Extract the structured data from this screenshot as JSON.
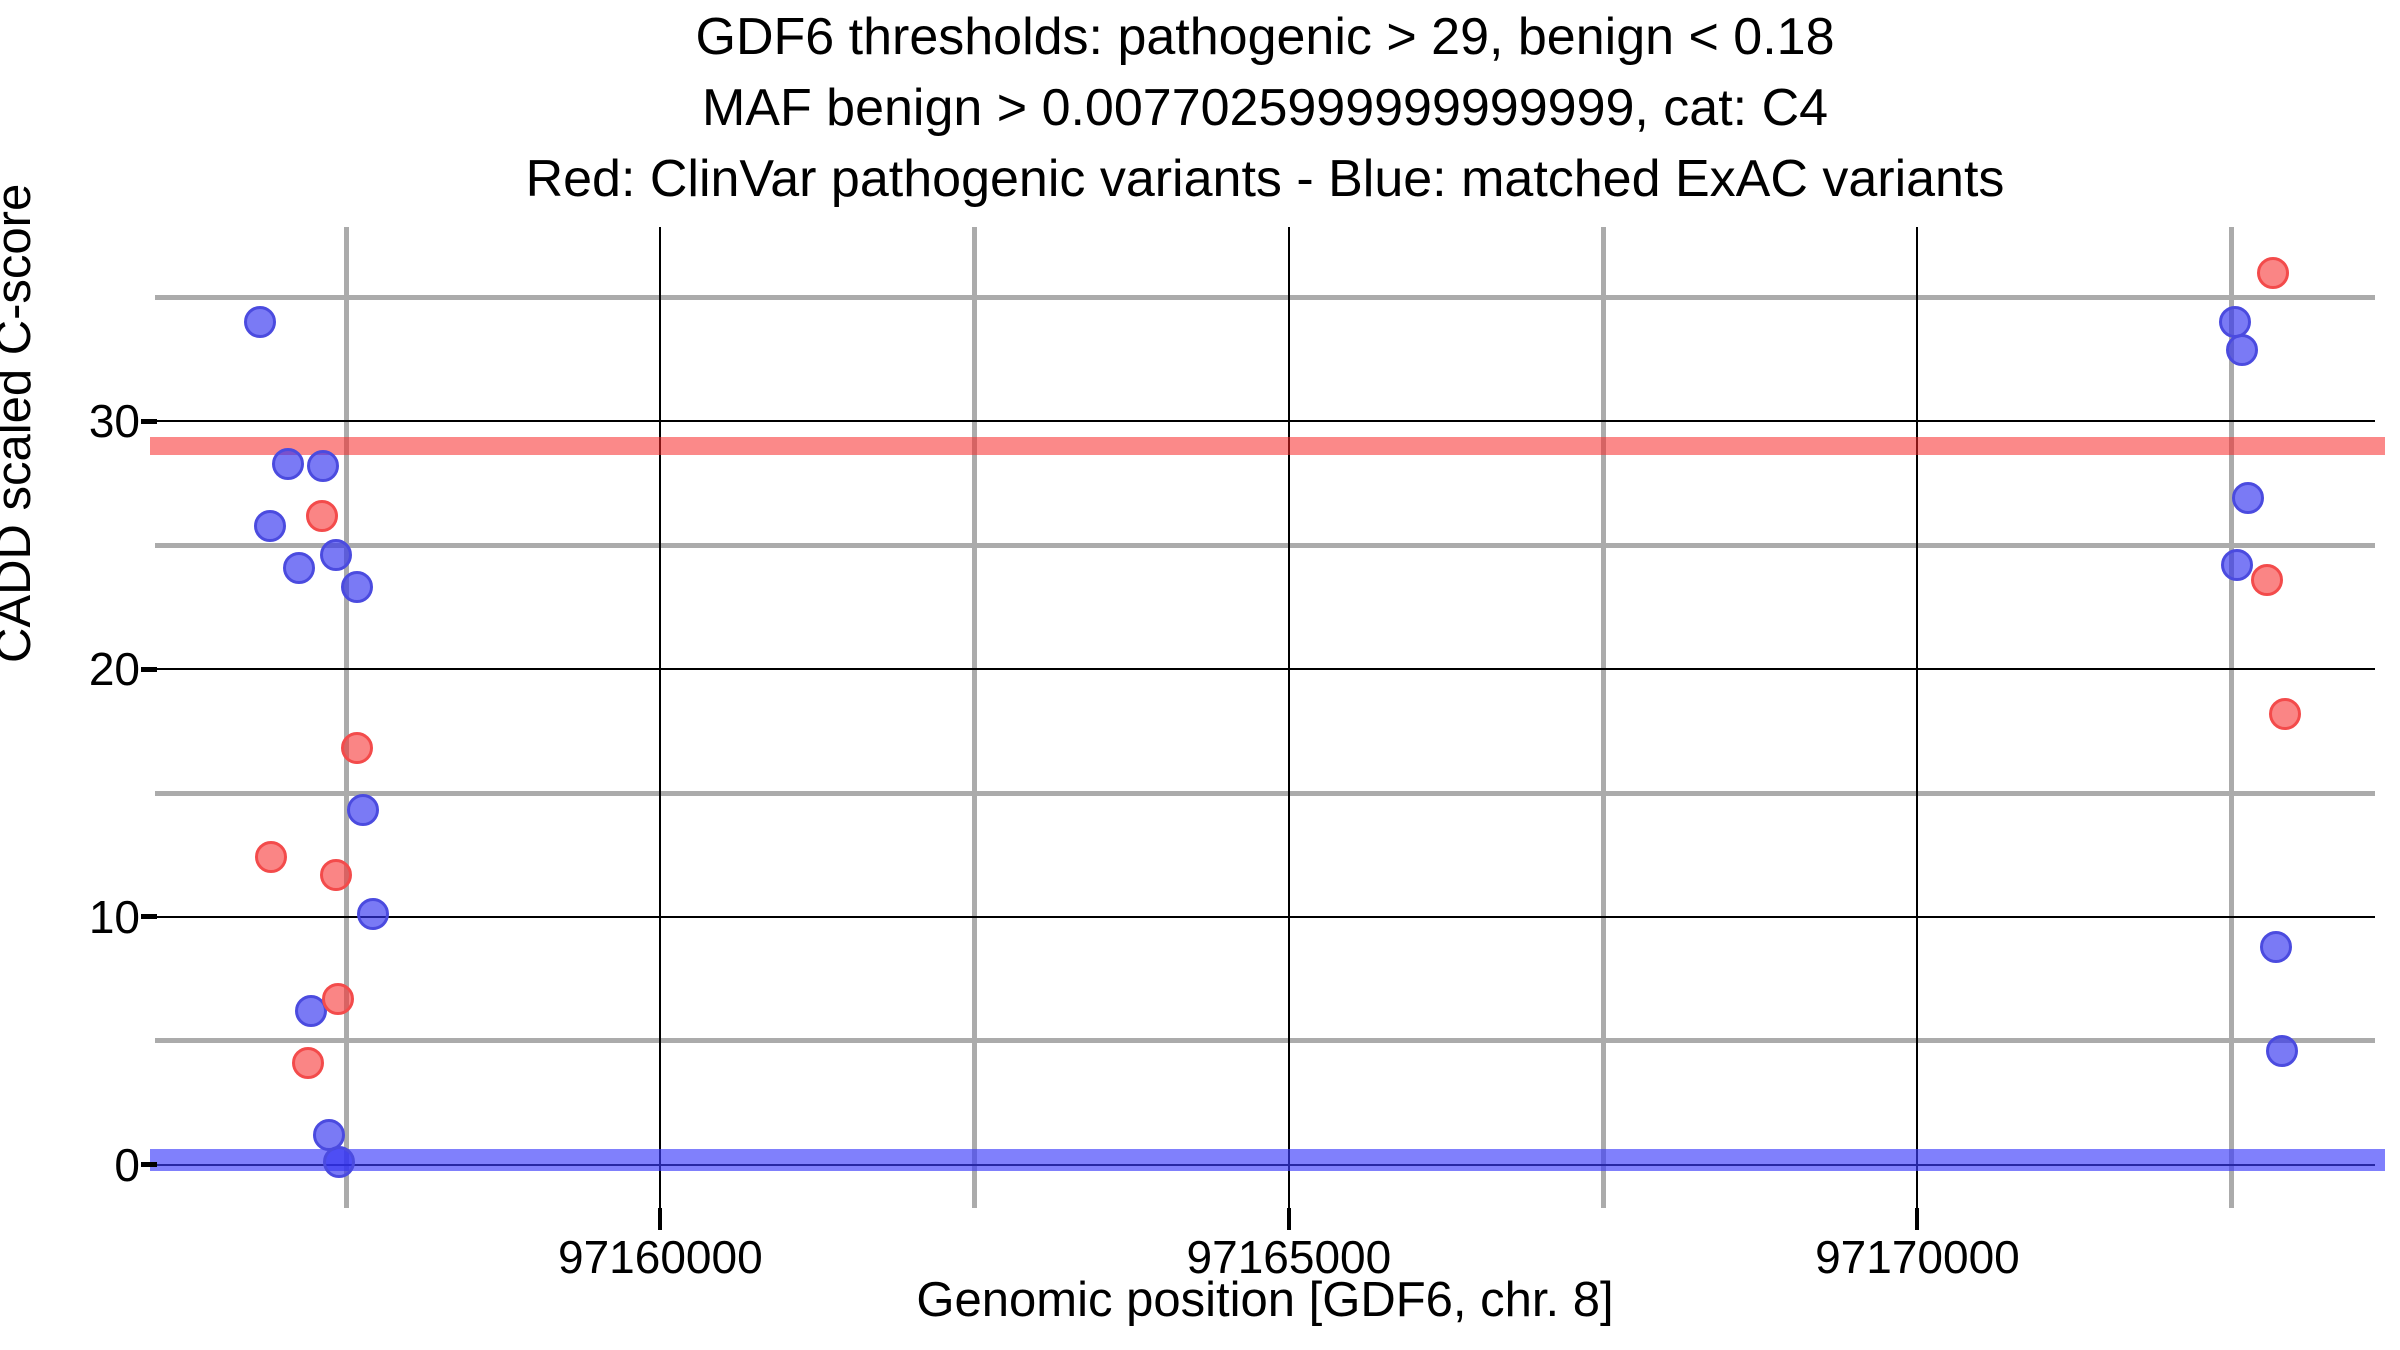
{
  "chart_data": {
    "type": "scatter",
    "title_lines": [
      "GDF6 thresholds: pathogenic > 29, benign < 0.18",
      "MAF benign > 0.0077025999999999999, cat: C4",
      "Red: ClinVar pathogenic variants - Blue: matched ExAC variants"
    ],
    "xlabel": "Genomic position [GDF6, chr. 8]",
    "ylabel": "CADD scaled C-score",
    "xlim": [
      97155980,
      97173640
    ],
    "ylim": [
      -1.75,
      37.85
    ],
    "x_ticks": [
      97160000,
      97165000,
      97170000
    ],
    "x_tick_labels": [
      "97160000",
      "97165000",
      "97170000"
    ],
    "x_minor_gridlines": [
      97157500,
      97162500,
      97167500,
      97172500
    ],
    "y_ticks": [
      0,
      10,
      20,
      30
    ],
    "y_tick_labels": [
      "0",
      "10",
      "20",
      "30"
    ],
    "y_minor_gridlines": [
      5,
      15,
      25,
      35
    ],
    "grid": true,
    "legend": "encoded in title line 3",
    "thresholds": {
      "pathogenic_cadd": 29,
      "benign_cadd": 0.18,
      "maf_benign": "0.0077025999999999999",
      "category": "C4"
    },
    "series": [
      {
        "name": "matched ExAC variants",
        "color_key": "blue",
        "points": [
          [
            97156814,
            34.0
          ],
          [
            97157036,
            28.3
          ],
          [
            97157313,
            28.2
          ],
          [
            97156893,
            25.8
          ],
          [
            97157417,
            24.6
          ],
          [
            97157124,
            24.1
          ],
          [
            97157583,
            23.3
          ],
          [
            97157631,
            14.3
          ],
          [
            97157718,
            10.1
          ],
          [
            97157218,
            6.2
          ],
          [
            97157361,
            1.2
          ],
          [
            97157440,
            0.1
          ],
          [
            97172527,
            34.0
          ],
          [
            97172583,
            32.9
          ],
          [
            97172630,
            26.9
          ],
          [
            97172543,
            24.2
          ],
          [
            97172853,
            8.8
          ],
          [
            97172901,
            4.6
          ]
        ]
      },
      {
        "name": "ClinVar pathogenic variants",
        "color_key": "red",
        "points": [
          [
            97157306,
            26.2
          ],
          [
            97157583,
            16.8
          ],
          [
            97156901,
            12.4
          ],
          [
            97157417,
            11.7
          ],
          [
            97157432,
            6.7
          ],
          [
            97157195,
            4.1
          ],
          [
            97172829,
            36.0
          ],
          [
            97172782,
            23.6
          ],
          [
            97172925,
            18.2
          ]
        ]
      }
    ],
    "colors": {
      "red_fill": "rgba(246,52,52,0.6)",
      "red_edge": "#f34b4b",
      "blue_fill": "rgba(50,50,240,0.65)",
      "blue_edge": "#4b4bdf",
      "red_band": "rgba(248,40,40,0.55)",
      "blue_band": "rgba(60,60,250,0.65)",
      "grid_major": "#000000",
      "grid_minor": "#ababab",
      "text": "#000000"
    }
  }
}
